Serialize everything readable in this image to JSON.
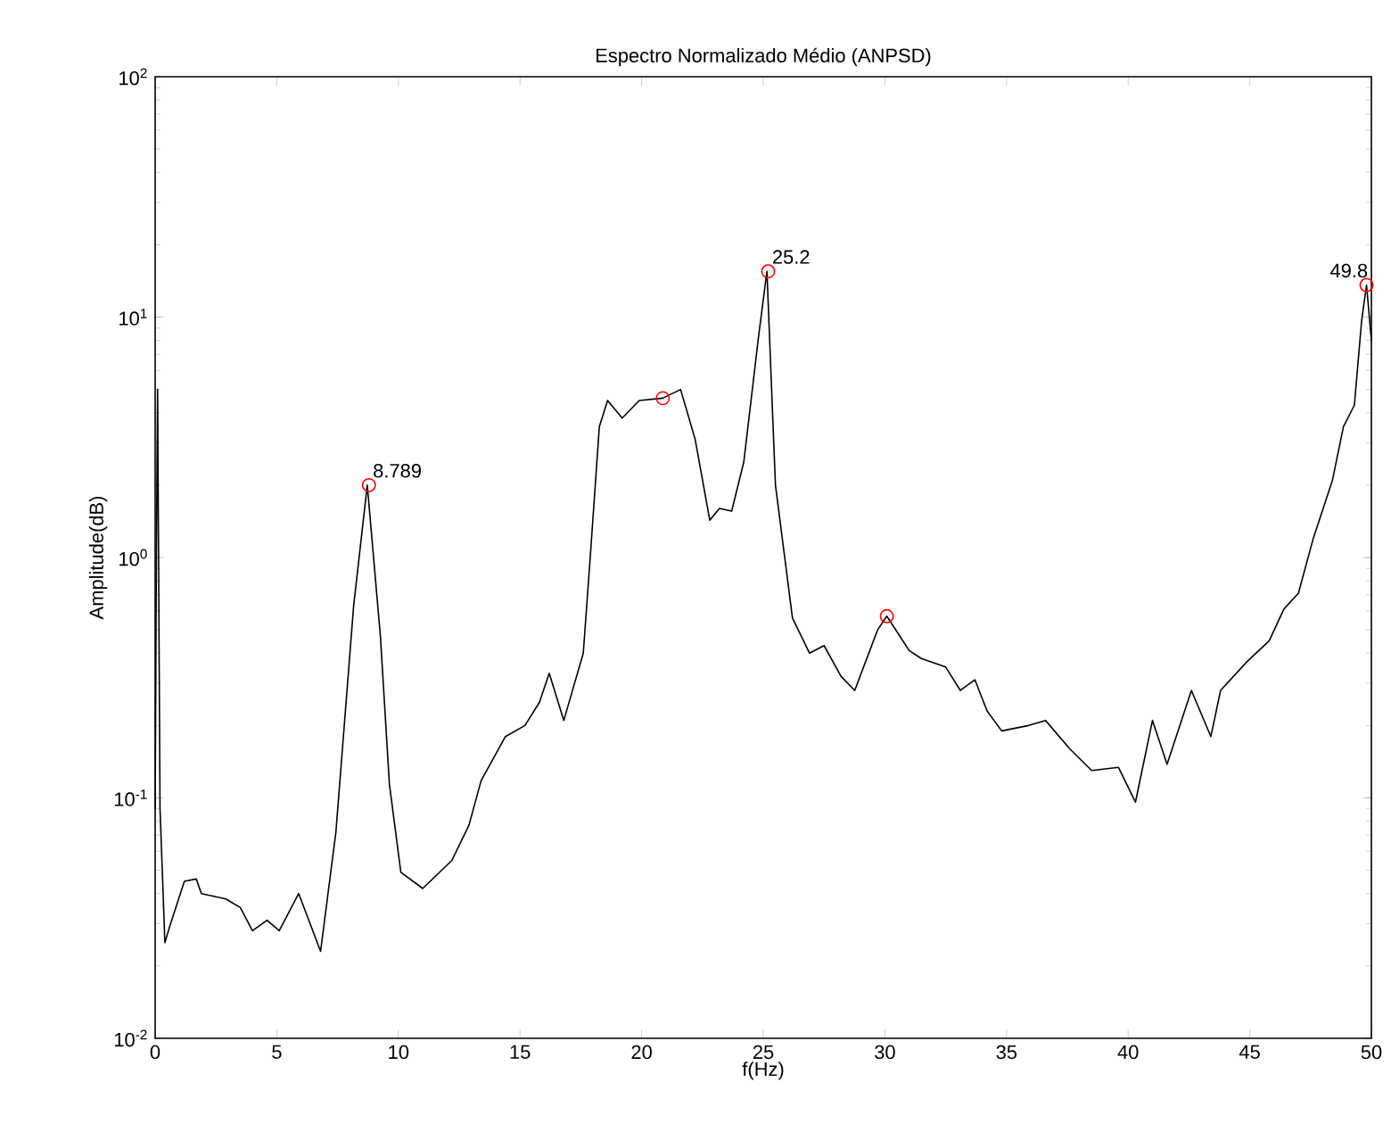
{
  "chart_data": {
    "type": "line",
    "title": "Espectro Normalizado Médio (ANPSD)",
    "xlabel": "f(Hz)",
    "ylabel": "Amplitude(dB)",
    "log": "y",
    "grid": false,
    "xlim": [
      0,
      50
    ],
    "ylim": [
      0.01,
      100
    ],
    "xticks": [
      0,
      5,
      10,
      15,
      20,
      25,
      30,
      35,
      40,
      45,
      50
    ],
    "yticks": [
      {
        "value": 0.01,
        "label": "10$^{-2}$"
      },
      {
        "value": 0.1,
        "label": "10$^{-1}$"
      },
      {
        "value": 1,
        "label": "10$^{0}$"
      },
      {
        "value": 10,
        "label": "10$^{1}$"
      },
      {
        "value": 100,
        "label": "10$^{2}$"
      }
    ],
    "series": [
      {
        "color": "#000000",
        "marker": "none",
        "line_style": "solid",
        "x": [
          0,
          0.05,
          0.1,
          0.2,
          0.4,
          0.59,
          1.2,
          1.69,
          1.9,
          2.9,
          3.5,
          4.0,
          4.6,
          5.1,
          5.9,
          6.8,
          7.43,
          8.16,
          8.72,
          9.26,
          9.63,
          10.1,
          11.0,
          12.2,
          12.9,
          13.4,
          14.4,
          15.2,
          15.8,
          16.2,
          16.8,
          17.6,
          17.9,
          18.26,
          18.6,
          19.2,
          19.9,
          20.87,
          21.6,
          22.2,
          22.8,
          23.2,
          23.7,
          24.2,
          24.8,
          25.15,
          25.5,
          26.2,
          26.9,
          27.5,
          28.2,
          28.76,
          29.7,
          30.08,
          31.0,
          31.5,
          32.5,
          33.1,
          33.7,
          34.2,
          34.8,
          35.9,
          36.6,
          37.6,
          38.5,
          39.6,
          40.3,
          41.0,
          41.6,
          42.6,
          43.4,
          43.8,
          44.9,
          45.8,
          46.4,
          47.0,
          47.6,
          48.4,
          48.85,
          49.3,
          49.6,
          49.8,
          50
        ],
        "values": [
          0.09,
          1.0,
          5.0,
          0.09,
          0.025,
          0.029,
          0.045,
          0.046,
          0.04,
          0.038,
          0.035,
          0.028,
          0.031,
          0.028,
          0.04,
          0.023,
          0.072,
          0.63,
          2.0,
          0.47,
          0.114,
          0.049,
          0.042,
          0.055,
          0.077,
          0.118,
          0.18,
          0.2,
          0.25,
          0.33,
          0.21,
          0.4,
          1.05,
          3.5,
          4.5,
          3.8,
          4.5,
          4.6,
          5.0,
          3.1,
          1.43,
          1.6,
          1.56,
          2.5,
          8.2,
          15.5,
          2.0,
          0.56,
          0.4,
          0.43,
          0.32,
          0.28,
          0.5,
          0.57,
          0.41,
          0.38,
          0.35,
          0.28,
          0.31,
          0.23,
          0.19,
          0.2,
          0.21,
          0.16,
          0.13,
          0.134,
          0.096,
          0.21,
          0.138,
          0.28,
          0.18,
          0.28,
          0.37,
          0.45,
          0.61,
          0.71,
          1.19,
          2.1,
          3.5,
          4.3,
          9.7,
          13.6,
          8.0
        ]
      },
      {
        "type": "scatter",
        "color": "#ff0000",
        "marker": "circle",
        "x": [
          8.789,
          20.87,
          25.2,
          30.08,
          49.8
        ],
        "values": [
          2.0,
          4.6,
          15.5,
          0.57,
          13.6
        ]
      }
    ],
    "annotations": [
      {
        "text": "8.789",
        "x": 8.789,
        "y": 2.0
      },
      {
        "text": "25.2",
        "x": 25.2,
        "y": 15.5
      },
      {
        "text": "49.8",
        "x": 49.8,
        "y": 13.6
      }
    ]
  }
}
